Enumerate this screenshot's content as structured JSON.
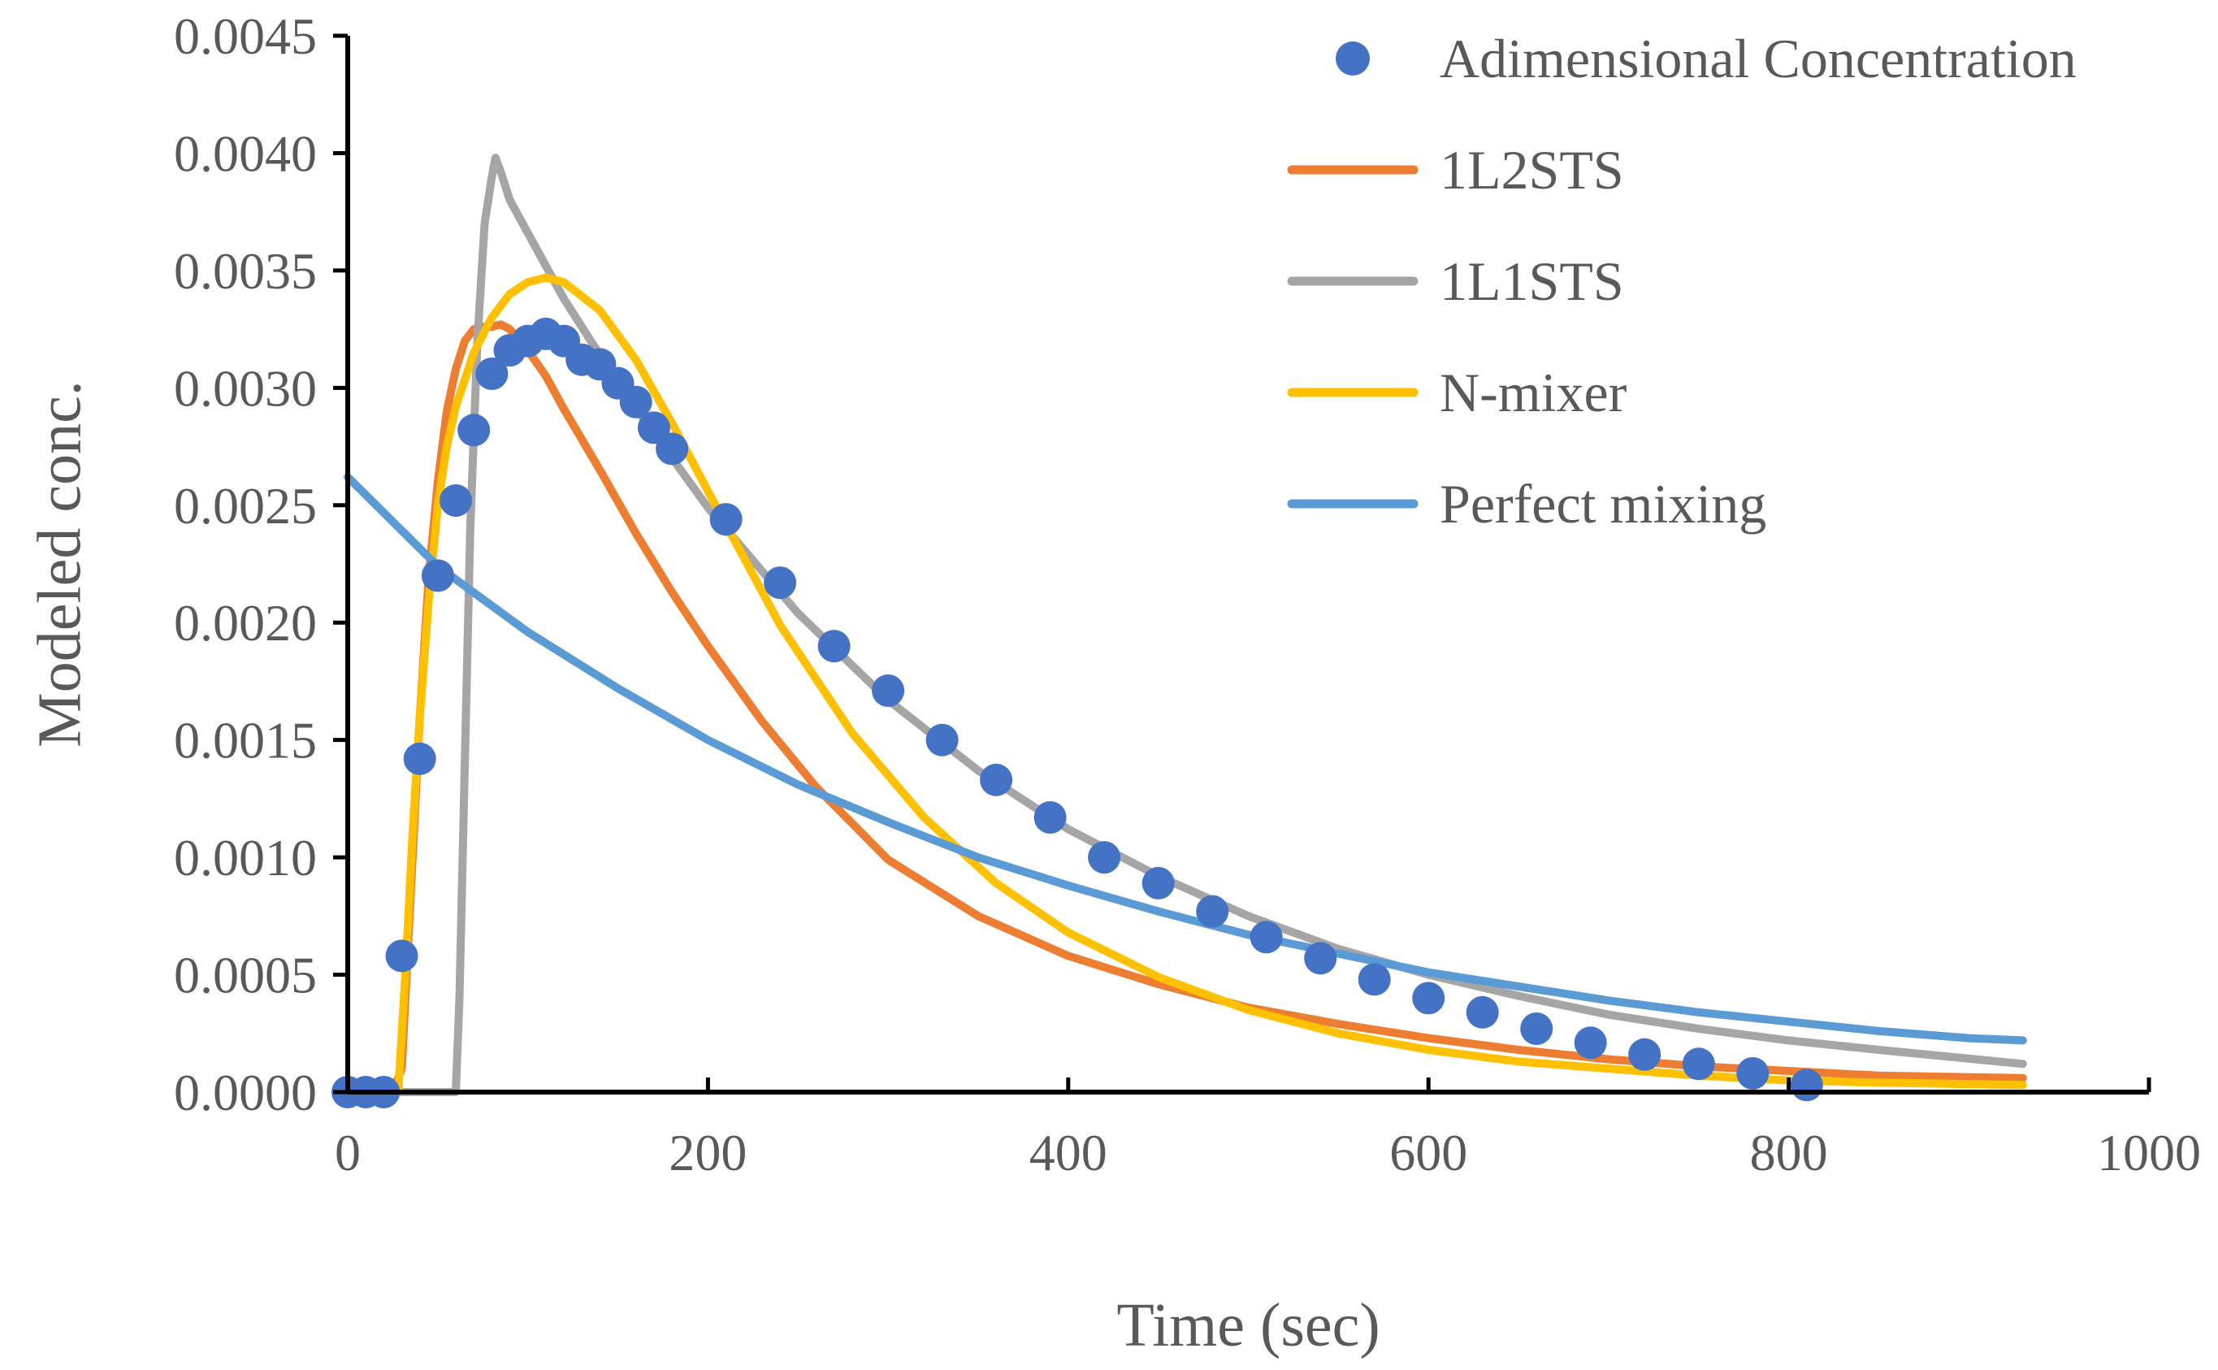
{
  "chart_data": {
    "type": "scatter",
    "xlabel": "Time (sec)",
    "ylabel": "Modeled conc.",
    "xlim": [
      0,
      1000
    ],
    "ylim": [
      0,
      0.0045
    ],
    "xticks": [
      0,
      200,
      400,
      600,
      800,
      1000
    ],
    "xtick_labels": [
      "0",
      "200",
      "400",
      "600",
      "800",
      "1000"
    ],
    "yticks": [
      0,
      0.0005,
      0.001,
      0.0015,
      0.002,
      0.0025,
      0.003,
      0.0035,
      0.004,
      0.0045
    ],
    "ytick_labels": [
      "0.0000",
      "0.0005",
      "0.0010",
      "0.0015",
      "0.0020",
      "0.0025",
      "0.0030",
      "0.0035",
      "0.0040",
      "0.0045"
    ],
    "grid": false,
    "legend_position": "top-right",
    "series": [
      {
        "name": "Adimensional Concentration",
        "kind": "markers",
        "color": "#4472C4",
        "x": [
          0,
          10,
          20,
          30,
          40,
          50,
          60,
          70,
          80,
          90,
          100,
          110,
          120,
          130,
          140,
          150,
          160,
          170,
          180,
          210,
          240,
          270,
          300,
          330,
          360,
          390,
          420,
          450,
          480,
          510,
          540,
          570,
          600,
          630,
          660,
          690,
          720,
          750,
          780,
          810
        ],
        "y": [
          0,
          0,
          0,
          0.00058,
          0.00142,
          0.0022,
          0.00252,
          0.00282,
          0.00306,
          0.00316,
          0.0032,
          0.00323,
          0.0032,
          0.00312,
          0.0031,
          0.00302,
          0.00294,
          0.00283,
          0.00274,
          0.00244,
          0.00217,
          0.0019,
          0.00171,
          0.0015,
          0.00133,
          0.00117,
          0.001,
          0.00089,
          0.00077,
          0.00066,
          0.00057,
          0.00048,
          0.0004,
          0.00034,
          0.00027,
          0.00021,
          0.00016,
          0.00012,
          8e-05,
          3e-05
        ]
      },
      {
        "name": "1L2STS",
        "kind": "line",
        "color": "#ED7D31",
        "x": [
          0,
          25,
          30,
          35,
          40,
          45,
          50,
          55,
          60,
          65,
          70,
          75,
          80,
          85,
          90,
          100,
          110,
          120,
          140,
          160,
          180,
          200,
          230,
          260,
          300,
          350,
          400,
          450,
          500,
          550,
          600,
          650,
          700,
          750,
          800,
          850,
          930
        ],
        "y": [
          0,
          0,
          0.0001,
          0.00085,
          0.0016,
          0.0022,
          0.0026,
          0.0029,
          0.00308,
          0.0032,
          0.00325,
          0.00326,
          0.00326,
          0.00327,
          0.00325,
          0.00316,
          0.00305,
          0.00291,
          0.00265,
          0.00238,
          0.00213,
          0.0019,
          0.00158,
          0.0013,
          0.00099,
          0.00075,
          0.00058,
          0.00046,
          0.00036,
          0.00029,
          0.00023,
          0.00018,
          0.00014,
          0.00011,
          9e-05,
          7e-05,
          6e-05
        ]
      },
      {
        "name": "1L1STS",
        "kind": "line",
        "color": "#A5A5A5",
        "x": [
          0,
          60,
          62,
          65,
          68,
          72,
          76,
          80,
          82,
          85,
          90,
          100,
          120,
          150,
          200,
          250,
          300,
          350,
          400,
          450,
          500,
          550,
          600,
          650,
          700,
          750,
          800,
          850,
          930
        ],
        "y": [
          0,
          0,
          0.0004,
          0.0014,
          0.0024,
          0.0032,
          0.0037,
          0.0039,
          0.00398,
          0.00392,
          0.0038,
          0.00366,
          0.00338,
          0.00302,
          0.00249,
          0.00204,
          0.00167,
          0.00137,
          0.00112,
          0.00092,
          0.00075,
          0.00061,
          0.0005,
          0.00041,
          0.00033,
          0.00027,
          0.00022,
          0.00018,
          0.00012
        ]
      },
      {
        "name": "N-mixer",
        "kind": "line",
        "color": "#FFC000",
        "x": [
          0,
          28,
          32,
          36,
          40,
          45,
          50,
          55,
          60,
          70,
          80,
          90,
          100,
          110,
          120,
          140,
          160,
          180,
          200,
          240,
          280,
          320,
          360,
          400,
          450,
          500,
          550,
          600,
          650,
          700,
          750,
          800,
          850,
          930
        ],
        "y": [
          0,
          0,
          0.0005,
          0.0011,
          0.0016,
          0.0021,
          0.0025,
          0.00275,
          0.00292,
          0.00315,
          0.0033,
          0.0034,
          0.00345,
          0.00347,
          0.00345,
          0.00333,
          0.00312,
          0.00285,
          0.00256,
          0.00199,
          0.00153,
          0.00117,
          0.00089,
          0.00068,
          0.00049,
          0.00035,
          0.00025,
          0.00018,
          0.00013,
          0.0001,
          7e-05,
          5e-05,
          4e-05,
          3e-05
        ]
      },
      {
        "name": "Perfect mixing",
        "kind": "line",
        "color": "#5B9BD5",
        "x": [
          0,
          50,
          100,
          150,
          200,
          250,
          300,
          350,
          400,
          450,
          500,
          550,
          600,
          650,
          700,
          750,
          800,
          850,
          900,
          930
        ],
        "y": [
          0.00262,
          0.00224,
          0.00196,
          0.00172,
          0.0015,
          0.00131,
          0.00115,
          0.001,
          0.00088,
          0.00077,
          0.00067,
          0.00059,
          0.00051,
          0.00045,
          0.00039,
          0.00034,
          0.0003,
          0.00026,
          0.00023,
          0.00022
        ]
      }
    ]
  }
}
